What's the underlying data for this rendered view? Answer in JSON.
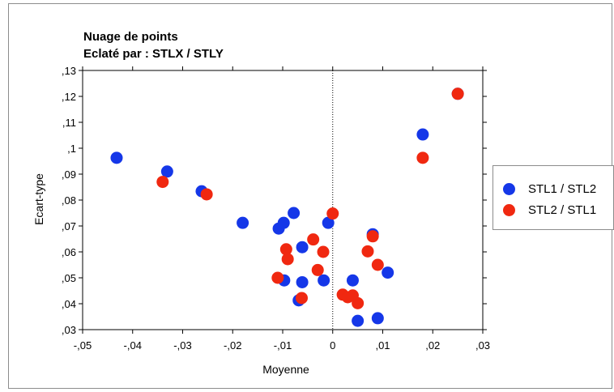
{
  "chart_data": {
    "type": "scatter",
    "title": "Nuage de points",
    "subtitle": "Eclaté par : STLX / STLY",
    "xlabel": "Moyenne",
    "ylabel": "Ecart-type",
    "xlim": [
      -0.05,
      0.03
    ],
    "ylim": [
      0.03,
      0.13
    ],
    "x_ticks": [
      -0.05,
      -0.04,
      -0.03,
      -0.02,
      -0.01,
      0,
      0.01,
      0.02,
      0.03
    ],
    "x_tick_labels": [
      "-,05",
      "-,04",
      "-,03",
      "-,02",
      "-,01",
      "0",
      ",01",
      ",02",
      ",03"
    ],
    "y_ticks": [
      0.03,
      0.04,
      0.05,
      0.06,
      0.07,
      0.08,
      0.09,
      0.1,
      0.11,
      0.12,
      0.13
    ],
    "y_tick_labels": [
      ",03",
      ",04",
      ",05",
      ",06",
      ",07",
      ",08",
      ",09",
      ",1",
      ",11",
      ",12",
      ",13"
    ],
    "reference_line_x": 0,
    "legend_position": "right",
    "series": [
      {
        "name": "STL1 / STL2",
        "color": "#1537e8",
        "points": [
          [
            -0.0432,
            0.0963
          ],
          [
            -0.0331,
            0.091
          ],
          [
            -0.0262,
            0.0834
          ],
          [
            -0.018,
            0.0712
          ],
          [
            -0.0108,
            0.069
          ],
          [
            -0.0098,
            0.0712
          ],
          [
            -0.0078,
            0.075
          ],
          [
            -0.0061,
            0.0618
          ],
          [
            -0.0097,
            0.049
          ],
          [
            -0.0061,
            0.0483
          ],
          [
            -0.0068,
            0.0413
          ],
          [
            -0.0018,
            0.049
          ],
          [
            -0.0009,
            0.0712
          ],
          [
            0.008,
            0.0668
          ],
          [
            0.004,
            0.049
          ],
          [
            0.011,
            0.052
          ],
          [
            0.009,
            0.0344
          ],
          [
            0.005,
            0.0334
          ],
          [
            0.018,
            0.1053
          ],
          [
            0.025,
            0.121
          ]
        ]
      },
      {
        "name": "STL2 / STL1",
        "color": "#f02810",
        "points": [
          [
            -0.034,
            0.087
          ],
          [
            -0.0252,
            0.0822
          ],
          [
            -0.0093,
            0.061
          ],
          [
            -0.009,
            0.0572
          ],
          [
            -0.011,
            0.05
          ],
          [
            -0.0062,
            0.0422
          ],
          [
            -0.0039,
            0.0648
          ],
          [
            -0.0019,
            0.06
          ],
          [
            -0.003,
            0.053
          ],
          [
            0.0,
            0.0748
          ],
          [
            0.002,
            0.0435
          ],
          [
            0.003,
            0.0425
          ],
          [
            0.004,
            0.0432
          ],
          [
            0.005,
            0.0402
          ],
          [
            0.007,
            0.0602
          ],
          [
            0.008,
            0.066
          ],
          [
            0.009,
            0.055
          ],
          [
            0.018,
            0.0963
          ],
          [
            0.025,
            0.121
          ]
        ]
      }
    ]
  }
}
